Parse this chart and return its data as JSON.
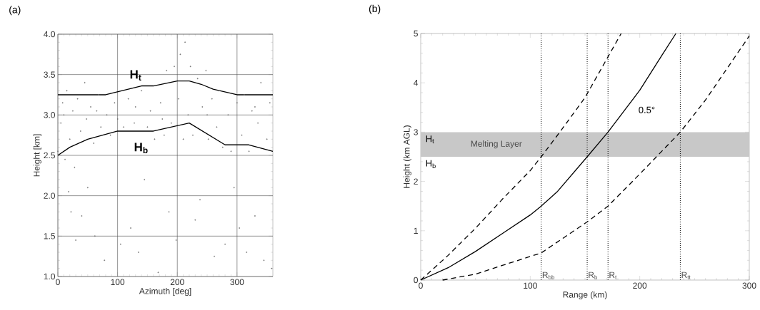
{
  "chart_data": [
    {
      "type": "scatter",
      "title": "(a)",
      "xlabel": "Azimuth [deg]",
      "ylabel": "Height [km]",
      "xlim": [
        0,
        360
      ],
      "ylim": [
        1,
        4
      ],
      "xticks": [
        0,
        100,
        200,
        300
      ],
      "yticks": [
        {
          "value": 1,
          "label": "1.0"
        },
        1.5,
        {
          "value": 2,
          "label": "2.0"
        },
        2.5,
        {
          "value": 3,
          "label": "3.0"
        },
        3.5,
        {
          "value": 4,
          "label": "4.0"
        }
      ],
      "grid": true,
      "series": [
        {
          "type": "scatter",
          "color": "#707070",
          "x": [
            0,
            5,
            8,
            12,
            15,
            18,
            20,
            22,
            25,
            28,
            30,
            33,
            38,
            40,
            45,
            48,
            50,
            55,
            60,
            62,
            68,
            72,
            78,
            82,
            88,
            95,
            100,
            105,
            110,
            118,
            122,
            128,
            135,
            140,
            145,
            150,
            155,
            162,
            168,
            172,
            178,
            182,
            186,
            190,
            195,
            198,
            202,
            205,
            210,
            213,
            218,
            222,
            226,
            230,
            234,
            238,
            242,
            248,
            252,
            258,
            262,
            266,
            270,
            276,
            280,
            285,
            290,
            295,
            300,
            304,
            308,
            312,
            316,
            320,
            325,
            330,
            335,
            340,
            345,
            350,
            355,
            358,
            10,
            65,
            130,
            175,
            250,
            330
          ],
          "values": [
            2.55,
            2.9,
            3.15,
            2.45,
            3.3,
            2.05,
            2.7,
            1.8,
            3.05,
            2.35,
            1.45,
            3.2,
            2.8,
            1.75,
            3.4,
            2.95,
            2.1,
            3.1,
            2.65,
            1.5,
            3.25,
            2.85,
            1.2,
            3.0,
            2.75,
            3.15,
            2.95,
            1.4,
            2.85,
            3.2,
            1.6,
            2.9,
            1.3,
            3.3,
            2.2,
            2.85,
            3.05,
            2.7,
            1.05,
            3.15,
            2.75,
            3.55,
            1.8,
            2.9,
            3.6,
            1.45,
            3.2,
            3.75,
            2.7,
            3.9,
            3.0,
            3.6,
            2.75,
            1.7,
            3.45,
            1.95,
            3.1,
            3.55,
            2.7,
            3.2,
            1.25,
            2.85,
            3.3,
            2.6,
            1.4,
            3.0,
            2.55,
            2.1,
            3.15,
            1.6,
            2.75,
            3.25,
            1.3,
            2.55,
            3.05,
            1.75,
            2.9,
            3.4,
            1.2,
            2.7,
            3.15,
            1.1,
            3.0,
            3.05,
            3.1,
            2.95,
            3.0,
            3.1
          ]
        },
        {
          "type": "line",
          "color": "#000000",
          "x": [
            0,
            80,
            140,
            160,
            200,
            220,
            240,
            260,
            300,
            360
          ],
          "values": [
            3.25,
            3.25,
            3.36,
            3.36,
            3.42,
            3.42,
            3.38,
            3.32,
            3.25,
            3.25
          ]
        },
        {
          "type": "line",
          "color": "#000000",
          "x": [
            0,
            20,
            50,
            100,
            160,
            220,
            280,
            320,
            360
          ],
          "values": [
            2.5,
            2.6,
            2.7,
            2.8,
            2.8,
            2.9,
            2.63,
            2.63,
            2.55
          ]
        }
      ],
      "annotations": [
        "H$_{t}$",
        "H$_{b}$"
      ]
    },
    {
      "type": "line",
      "title": "(b)",
      "xlabel": "Range (km)",
      "ylabel": "Height (km AGL)",
      "xlim": [
        0,
        300
      ],
      "ylim": [
        0,
        5
      ],
      "xticks": [
        0,
        100,
        200,
        300
      ],
      "yticks": [
        0,
        1,
        2,
        3,
        4,
        5
      ],
      "grid": false,
      "series": [
        {
          "color": "#000000",
          "line_style": "dashed",
          "x": [
            0,
            25,
            50,
            75,
            100,
            110,
            127,
            150,
            183
          ],
          "values": [
            0,
            0.5,
            1.05,
            1.65,
            2.22,
            2.5,
            3.0,
            3.7,
            5.0
          ]
        },
        {
          "color": "#000000",
          "line_style": "solid",
          "x": [
            0,
            25,
            50,
            75,
            100,
            110,
            125,
            152,
            171,
            200,
            220,
            233
          ],
          "values": [
            0,
            0.25,
            0.58,
            0.95,
            1.32,
            1.5,
            1.8,
            2.5,
            3.0,
            3.85,
            4.55,
            5.0
          ]
        },
        {
          "color": "#000000",
          "line_style": "dashed",
          "x": [
            20,
            50,
            75,
            110,
            152,
            171,
            200,
            237,
            260,
            300
          ],
          "values": [
            0,
            0.12,
            0.3,
            0.55,
            1.18,
            1.5,
            2.15,
            3.0,
            3.65,
            4.95
          ]
        }
      ],
      "bands": [
        {
          "axis": "y",
          "from": 2.5,
          "to": 3,
          "label": "Melting Layer",
          "color": "#c8c8c8"
        }
      ],
      "ref_lines": [
        {
          "axis": "x",
          "value": 110,
          "label": "R$_{bb}$",
          "line_style": "dotted"
        },
        {
          "axis": "x",
          "value": 152,
          "label": "R$_{b}$",
          "line_style": "dotted"
        },
        {
          "axis": "x",
          "value": 171,
          "label": "R$_{t}$",
          "line_style": "dotted"
        },
        {
          "axis": "x",
          "value": 237,
          "label": "R$_{tt}$",
          "line_style": "dotted"
        }
      ],
      "annotations": [
        "H$_{t}$",
        "H$_{b}$",
        "0.5°"
      ]
    }
  ]
}
